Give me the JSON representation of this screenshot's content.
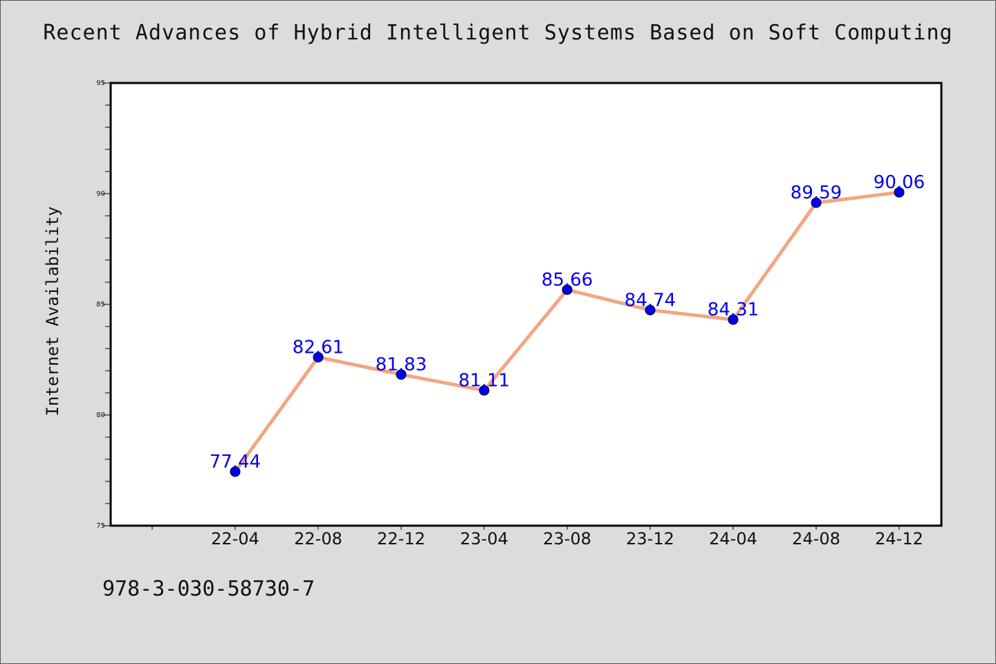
{
  "chart_data": {
    "type": "line",
    "title": "Recent Advances of Hybrid Intelligent Systems Based on Soft Computing",
    "ylabel": "Internet Availability",
    "xlabel": "",
    "categories": [
      "22-04",
      "22-08",
      "22-12",
      "23-04",
      "23-08",
      "23-12",
      "24-04",
      "24-08",
      "24-12"
    ],
    "series": [
      {
        "values": [
          77.44,
          82.61,
          81.83,
          81.11,
          85.66,
          84.74,
          84.31,
          89.59,
          90.06
        ],
        "labels": [
          "77.44",
          "82.61",
          "81.83",
          "81.11",
          "85.66",
          "84.74",
          "84.31",
          "89.59",
          "90.06"
        ]
      }
    ],
    "ylim": [
      75,
      95
    ],
    "yticks": [
      "75",
      "80",
      "85",
      "90",
      "95"
    ],
    "grid": false,
    "line_color": "#f4a582",
    "marker_color": "#0000ee",
    "label_color": "#0000ee"
  },
  "footnote": "978-3-030-58730-7"
}
